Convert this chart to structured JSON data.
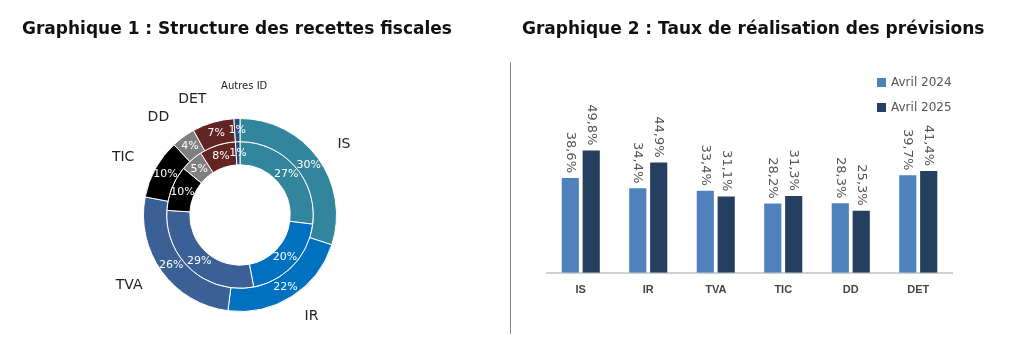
{
  "chart_data": [
    {
      "type": "donut",
      "title": "Graphique 1 : Structure des recettes fiscales",
      "categories": [
        "IS",
        "IR",
        "TVA",
        "TIC",
        "DD",
        "DET",
        "Autres ID"
      ],
      "colors": [
        "#31859c",
        "#0070c0",
        "#3a6095",
        "#000000",
        "#808080",
        "#632523",
        "#254d7f"
      ],
      "series": [
        {
          "values": [
            30,
            22,
            26,
            10,
            4,
            7,
            1
          ],
          "value_labels": [
            "30%",
            "22%",
            "26%",
            "10%",
            "4%",
            "7%",
            "1%"
          ]
        },
        {
          "values": [
            27,
            20,
            29,
            10,
            5,
            8,
            1
          ],
          "value_labels": [
            "27%",
            "20%",
            "29%",
            "10%",
            "5%",
            "8%",
            "1%"
          ]
        }
      ]
    },
    {
      "type": "bar",
      "title": "Graphique 2 : Taux de réalisation des prévisions",
      "categories": [
        "IS",
        "IR",
        "TVA",
        "TIC",
        "DD",
        "DET"
      ],
      "legend": "top right",
      "series": [
        {
          "name": "Avril 2024",
          "color": "#4f81bd",
          "values": [
            38.6,
            34.4,
            33.4,
            28.2,
            28.3,
            39.7
          ],
          "value_labels": [
            "38,6%",
            "34,4%",
            "33,4%",
            "28,2%",
            "28,3%",
            "39,7%"
          ]
        },
        {
          "name": "Avril 2025",
          "color": "#243f60",
          "values": [
            49.8,
            44.9,
            31.1,
            31.3,
            25.3,
            41.4
          ],
          "value_labels": [
            "49,8%",
            "44,9%",
            "31,1%",
            "31,3%",
            "25,3%",
            "41,4%"
          ]
        }
      ]
    }
  ]
}
